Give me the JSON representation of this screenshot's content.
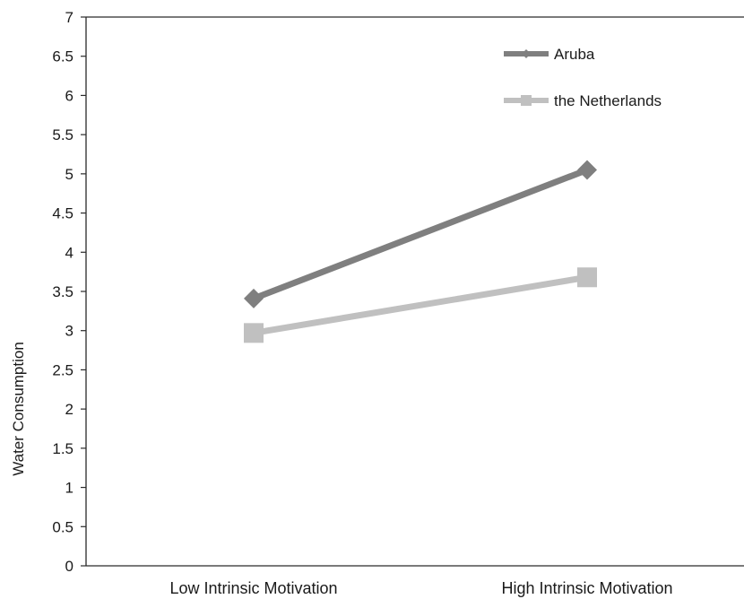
{
  "chart_data": {
    "type": "line",
    "title": "",
    "xlabel": "",
    "ylabel": "Water Consumption",
    "categories": [
      "Low Intrinsic Motivation",
      "High Intrinsic Motivation"
    ],
    "ylim": [
      0,
      7
    ],
    "yticks": [
      "0",
      "0.5",
      "1",
      "1.5",
      "2",
      "2.5",
      "3",
      "3.5",
      "4",
      "4.5",
      "5",
      "5.5",
      "6",
      "6.5",
      "7"
    ],
    "grid": false,
    "legend_position": "top-right",
    "series": [
      {
        "name": "Aruba",
        "values": [
          3.41,
          5.05
        ],
        "color": "#7f7f7f",
        "marker": "diamond"
      },
      {
        "name": "the Netherlands",
        "values": [
          2.97,
          3.68
        ],
        "color": "#c0c0c0",
        "marker": "square"
      }
    ]
  }
}
